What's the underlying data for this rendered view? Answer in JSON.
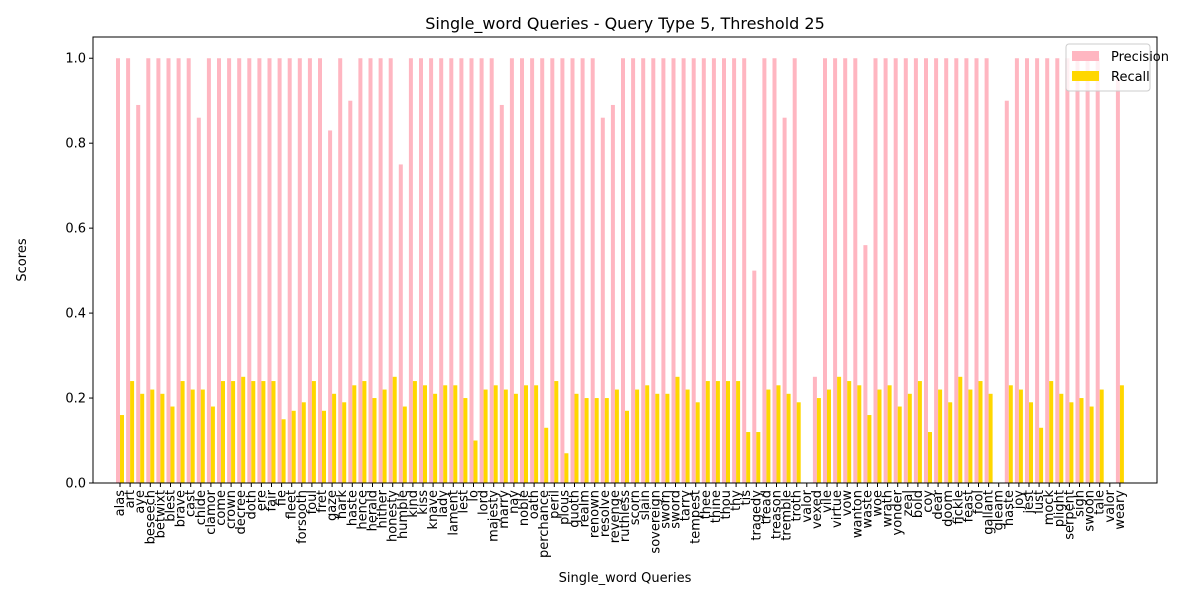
{
  "chart_data": {
    "type": "bar",
    "title": "Single_word Queries - Query Type 5, Threshold 25",
    "xlabel": "Single_word Queries",
    "ylabel": "Scores",
    "ylim": [
      0,
      1.05
    ],
    "yticks": [
      0.0,
      0.2,
      0.4,
      0.6,
      0.8,
      1.0
    ],
    "ytick_labels": [
      "0.0",
      "0.2",
      "0.4",
      "0.6",
      "0.8",
      "1.0"
    ],
    "grid": false,
    "legend_position": "upper right",
    "categories": [
      "alas",
      "art",
      "aye",
      "beseech",
      "betwixt",
      "blest",
      "brave",
      "cast",
      "chide",
      "clamor",
      "come",
      "crown",
      "decree",
      "doth",
      "ere",
      "fair",
      "fie",
      "fleet",
      "forsooth",
      "foul",
      "fret",
      "gaze",
      "hark",
      "haste",
      "hence",
      "herald",
      "hither",
      "honesty",
      "humble",
      "kind",
      "kiss",
      "knave",
      "lady",
      "lament",
      "lest",
      "lo",
      "lord",
      "majesty",
      "marry",
      "nay",
      "noble",
      "oath",
      "perchance",
      "peril",
      "plous",
      "quoth",
      "realm",
      "renown",
      "resolve",
      "revenge",
      "ruthless",
      "scorn",
      "slain",
      "sovereign",
      "sworn",
      "sword",
      "tarry",
      "tempest",
      "thee",
      "thine",
      "thou",
      "thy",
      "tis",
      "tragedy",
      "tread",
      "treason",
      "tremble",
      "troth",
      "valor",
      "vexed",
      "vile",
      "virtue",
      "vow",
      "wanton",
      "waste",
      "woe",
      "wrath",
      "yonder",
      "zeal",
      "bold",
      "coy",
      "dear",
      "doom",
      "fickle",
      "feast",
      "fool",
      "gallant",
      "gleam",
      "haste",
      "joy",
      "jest",
      "lust",
      "mock",
      "plight",
      "serpent",
      "sigh",
      "swoon",
      "tale",
      "valor",
      "weary"
    ],
    "series": [
      {
        "name": "Precision",
        "color": "#ffb6c1",
        "values": [
          1.0,
          1.0,
          0.89,
          1.0,
          1.0,
          1.0,
          1.0,
          1.0,
          0.86,
          1.0,
          1.0,
          1.0,
          1.0,
          1.0,
          1.0,
          1.0,
          1.0,
          1.0,
          1.0,
          1.0,
          1.0,
          0.83,
          1.0,
          0.9,
          1.0,
          1.0,
          1.0,
          1.0,
          0.75,
          1.0,
          1.0,
          1.0,
          1.0,
          1.0,
          1.0,
          1.0,
          1.0,
          1.0,
          0.89,
          1.0,
          1.0,
          1.0,
          1.0,
          1.0,
          1.0,
          1.0,
          1.0,
          1.0,
          0.86,
          0.89,
          1.0,
          1.0,
          1.0,
          1.0,
          1.0,
          1.0,
          1.0,
          1.0,
          1.0,
          1.0,
          1.0,
          1.0,
          1.0,
          0.5,
          1.0,
          1.0,
          0.86,
          1.0,
          0.0,
          0.25,
          1.0,
          1.0,
          1.0,
          1.0,
          0.56,
          1.0,
          1.0,
          1.0,
          1.0,
          1.0,
          1.0,
          1.0,
          1.0,
          1.0,
          1.0,
          1.0,
          1.0,
          0.0,
          0.9,
          1.0,
          1.0,
          1.0,
          1.0,
          1.0,
          1.0,
          1.0,
          1.0,
          1.0,
          0.0,
          0.95
        ]
      },
      {
        "name": "Recall",
        "color": "#ffd700",
        "values": [
          0.16,
          0.24,
          0.21,
          0.22,
          0.21,
          0.18,
          0.24,
          0.22,
          0.22,
          0.18,
          0.24,
          0.24,
          0.25,
          0.24,
          0.24,
          0.24,
          0.15,
          0.17,
          0.19,
          0.24,
          0.17,
          0.21,
          0.19,
          0.23,
          0.24,
          0.2,
          0.22,
          0.25,
          0.18,
          0.24,
          0.23,
          0.21,
          0.23,
          0.23,
          0.2,
          0.1,
          0.22,
          0.23,
          0.22,
          0.21,
          0.23,
          0.23,
          0.13,
          0.24,
          0.07,
          0.21,
          0.2,
          0.2,
          0.2,
          0.22,
          0.17,
          0.22,
          0.23,
          0.21,
          0.21,
          0.25,
          0.22,
          0.19,
          0.24,
          0.24,
          0.24,
          0.24,
          0.12,
          0.12,
          0.22,
          0.23,
          0.21,
          0.19,
          0.0,
          0.2,
          0.22,
          0.25,
          0.24,
          0.23,
          0.16,
          0.22,
          0.23,
          0.18,
          0.21,
          0.24,
          0.12,
          0.22,
          0.19,
          0.25,
          0.22,
          0.24,
          0.21,
          0.0,
          0.23,
          0.22,
          0.19,
          0.13,
          0.24,
          0.21,
          0.19,
          0.2,
          0.18,
          0.22,
          0.0,
          0.23
        ]
      }
    ]
  }
}
